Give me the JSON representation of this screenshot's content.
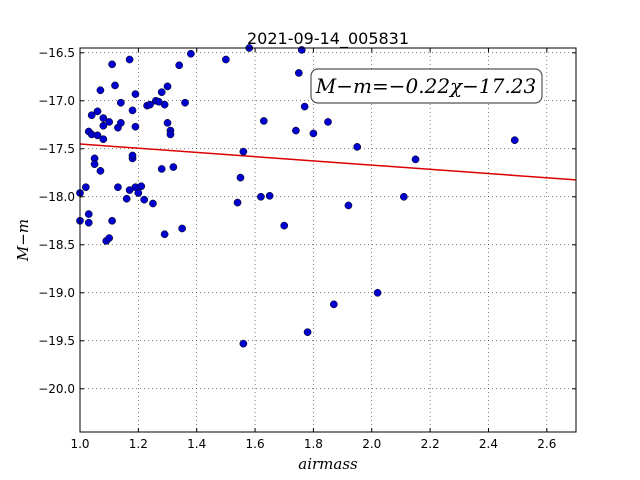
{
  "chart_data": {
    "type": "scatter",
    "title": "2021-09-14_005831",
    "xlabel": "airmass",
    "ylabel": "M−m",
    "xlim": [
      1.0,
      2.7
    ],
    "ylim": [
      -16.45,
      -20.45
    ],
    "y_inverted": true,
    "grid": true,
    "x_ticks": [
      1.0,
      1.2,
      1.4,
      1.6,
      1.8,
      2.0,
      2.2,
      2.4,
      2.6
    ],
    "x_tick_labels": [
      "1.0",
      "1.2",
      "1.4",
      "1.6",
      "1.8",
      "2.0",
      "2.2",
      "2.4",
      "2.6"
    ],
    "y_ticks": [
      -16.5,
      -17.0,
      -17.5,
      -18.0,
      -18.5,
      -19.0,
      -19.5,
      -20.0
    ],
    "y_tick_labels": [
      "−16.5",
      "−17.0",
      "−17.5",
      "−18.0",
      "−18.5",
      "−19.0",
      "−19.5",
      "−20.0"
    ],
    "annotation": "M−m=−0.22χ−17.23",
    "fit": {
      "slope": -0.22,
      "intercept": -17.23,
      "color": "#dd0000"
    },
    "marker_color": "#0000cc",
    "points": [
      [
        1.0,
        -17.96
      ],
      [
        1.0,
        -18.25
      ],
      [
        1.02,
        -17.9
      ],
      [
        1.03,
        -17.32
      ],
      [
        1.03,
        -18.27
      ],
      [
        1.03,
        -18.18
      ],
      [
        1.04,
        -17.15
      ],
      [
        1.04,
        -17.35
      ],
      [
        1.05,
        -17.6
      ],
      [
        1.05,
        -17.66
      ],
      [
        1.06,
        -17.11
      ],
      [
        1.06,
        -17.36
      ],
      [
        1.07,
        -16.89
      ],
      [
        1.07,
        -17.73
      ],
      [
        1.08,
        -17.4
      ],
      [
        1.08,
        -17.18
      ],
      [
        1.08,
        -17.26
      ],
      [
        1.09,
        -18.46
      ],
      [
        1.1,
        -17.22
      ],
      [
        1.1,
        -18.43
      ],
      [
        1.11,
        -18.25
      ],
      [
        1.11,
        -16.62
      ],
      [
        1.12,
        -16.84
      ],
      [
        1.13,
        -17.28
      ],
      [
        1.13,
        -17.9
      ],
      [
        1.14,
        -17.23
      ],
      [
        1.14,
        -17.02
      ],
      [
        1.16,
        -18.02
      ],
      [
        1.17,
        -16.57
      ],
      [
        1.17,
        -17.93
      ],
      [
        1.18,
        -17.6
      ],
      [
        1.18,
        -17.57
      ],
      [
        1.18,
        -17.1
      ],
      [
        1.19,
        -16.93
      ],
      [
        1.19,
        -17.27
      ],
      [
        1.19,
        -17.9
      ],
      [
        1.2,
        -17.96
      ],
      [
        1.21,
        -17.89
      ],
      [
        1.22,
        -18.03
      ],
      [
        1.23,
        -17.05
      ],
      [
        1.24,
        -17.04
      ],
      [
        1.25,
        -18.07
      ],
      [
        1.26,
        -17.0
      ],
      [
        1.27,
        -17.01
      ],
      [
        1.28,
        -17.71
      ],
      [
        1.28,
        -16.91
      ],
      [
        1.29,
        -17.04
      ],
      [
        1.29,
        -18.39
      ],
      [
        1.3,
        -17.23
      ],
      [
        1.3,
        -16.85
      ],
      [
        1.31,
        -17.31
      ],
      [
        1.31,
        -17.35
      ],
      [
        1.32,
        -17.69
      ],
      [
        1.34,
        -16.63
      ],
      [
        1.35,
        -18.33
      ],
      [
        1.36,
        -17.02
      ],
      [
        1.38,
        -16.51
      ],
      [
        1.5,
        -16.57
      ],
      [
        1.54,
        -18.06
      ],
      [
        1.55,
        -17.8
      ],
      [
        1.56,
        -17.53
      ],
      [
        1.56,
        -19.53
      ],
      [
        1.58,
        -16.45
      ],
      [
        1.62,
        -18.0
      ],
      [
        1.63,
        -17.21
      ],
      [
        1.65,
        -17.99
      ],
      [
        1.7,
        -18.3
      ],
      [
        1.74,
        -17.31
      ],
      [
        1.75,
        -16.71
      ],
      [
        1.76,
        -16.47
      ],
      [
        1.77,
        -17.06
      ],
      [
        1.78,
        -19.41
      ],
      [
        1.8,
        -17.34
      ],
      [
        1.85,
        -17.22
      ],
      [
        1.87,
        -19.12
      ],
      [
        1.92,
        -18.09
      ],
      [
        1.95,
        -17.48
      ],
      [
        2.02,
        -19.0
      ],
      [
        2.11,
        -18.0
      ],
      [
        2.15,
        -17.61
      ],
      [
        2.49,
        -17.41
      ]
    ]
  }
}
